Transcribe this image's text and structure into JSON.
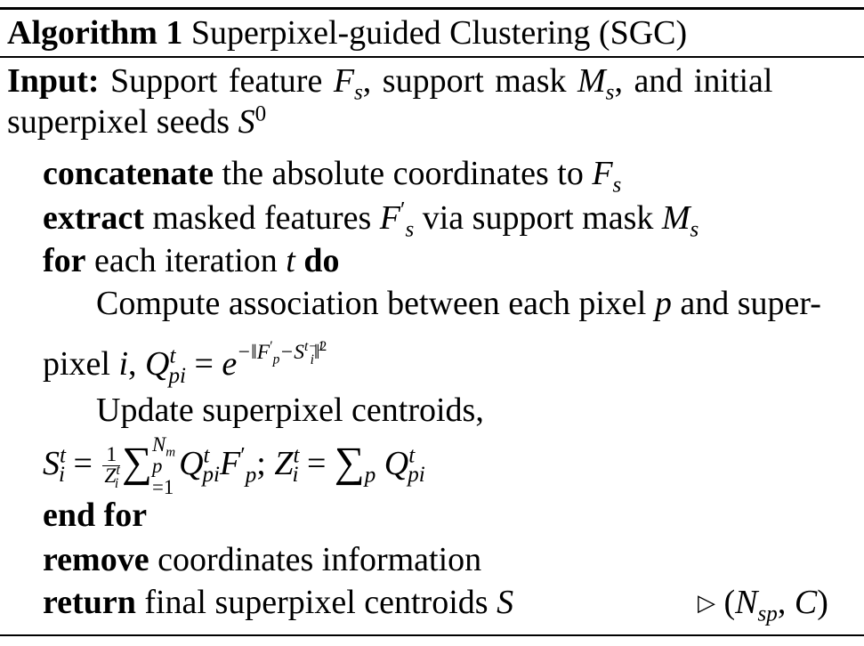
{
  "algorithm": {
    "label": "Algorithm 1",
    "title": "Superpixel-guided Clustering (SGC)",
    "input_label": "Input:",
    "input_text_1": "Support feature",
    "input_text_2": ", support mask",
    "input_text_3": ", and initial",
    "input_text_4": "superpixel seeds",
    "kw_concatenate": "concatenate",
    "concatenate_text": "the absolute coordinates to",
    "kw_extract": "extract",
    "extract_text_1": "masked features",
    "extract_text_2": "via support mask",
    "kw_for": "for",
    "for_text": "each iteration",
    "kw_do": "do",
    "compute_text": "Compute association between each pixel",
    "compute_text_2": "and super-",
    "pixel_text": "pixel",
    "update_text": "Update superpixel centroids,",
    "kw_endfor": "end for",
    "kw_remove": "remove",
    "remove_text": "coordinates information",
    "kw_return": "return",
    "return_text": "final superpixel centroids",
    "comment_symbol": "▷",
    "comment_expr": "(N_sp, C)"
  }
}
